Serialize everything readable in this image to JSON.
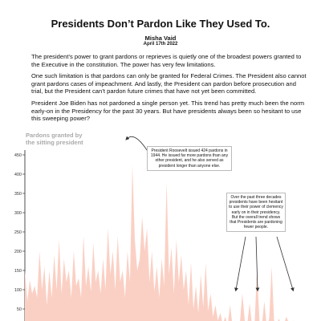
{
  "header": {
    "title": "Presidents Don’t Pardon Like They Used To.",
    "author": "Misha Vaid",
    "date": "April 17th 2022"
  },
  "intro": {
    "p1": "The president’s power to grant pardons or reprieves is quietly one of the broadest powers granted to the Executive in the constitution. The power has very few limitations.",
    "p2": "One such limitation is that pardons can only be granted for Federal Crimes. The President also cannot grant pardons cases of impeachment. And lastly, the President can pardon before prosecution and trial, but the President can’t pardon future crimes that have not yet been committed.",
    "p3": "President Joe Biden has not pardoned a single person yet. This trend has pretty much been the norm early-on in the Presidency for the past 30 years. But have presidents always been so hesitant to use this sweeping power?"
  },
  "annotations": {
    "roosevelt": "President Roosevelt issued 424 pardons in 1944. He issued far more pardons than any other president, and he also served as president longer than anyone else.",
    "recent": "Over the past three decades presidents have been hesitant to use their power of clemency early on in their presidency. But the overall trend shows that Presidents are pardoning fewer people."
  },
  "chart_data": {
    "type": "area",
    "ylabel_lines": [
      "Pardons granted by",
      "the sitting president"
    ],
    "ylim": [
      0,
      450
    ],
    "yticks": [
      50,
      100,
      150,
      200,
      250,
      300,
      350,
      400,
      450
    ],
    "fill_color": "#fbd0c4",
    "grid": false,
    "values": [
      150,
      70,
      125,
      90,
      110,
      80,
      200,
      100,
      160,
      60,
      150,
      80,
      190,
      100,
      230,
      90,
      180,
      120,
      150,
      80,
      200,
      110,
      130,
      80,
      240,
      110,
      160,
      95,
      220,
      120,
      150,
      90,
      180,
      100,
      260,
      140,
      200,
      100,
      240,
      120,
      150,
      80,
      200,
      120,
      424,
      230,
      150,
      180,
      290,
      200,
      260,
      120,
      200,
      95,
      160,
      80,
      180,
      110,
      380,
      140,
      210,
      90,
      230,
      120,
      190,
      100,
      150,
      60,
      170,
      50,
      110,
      40,
      140,
      55,
      170,
      45,
      90,
      30,
      60,
      20,
      40,
      10,
      30,
      8,
      60,
      5,
      20,
      8,
      15,
      90,
      20,
      10,
      65,
      5,
      10,
      150,
      20,
      8,
      70,
      5,
      25,
      160,
      20,
      10,
      25,
      5,
      10,
      30,
      15,
      5,
      20,
      10,
      15
    ]
  }
}
